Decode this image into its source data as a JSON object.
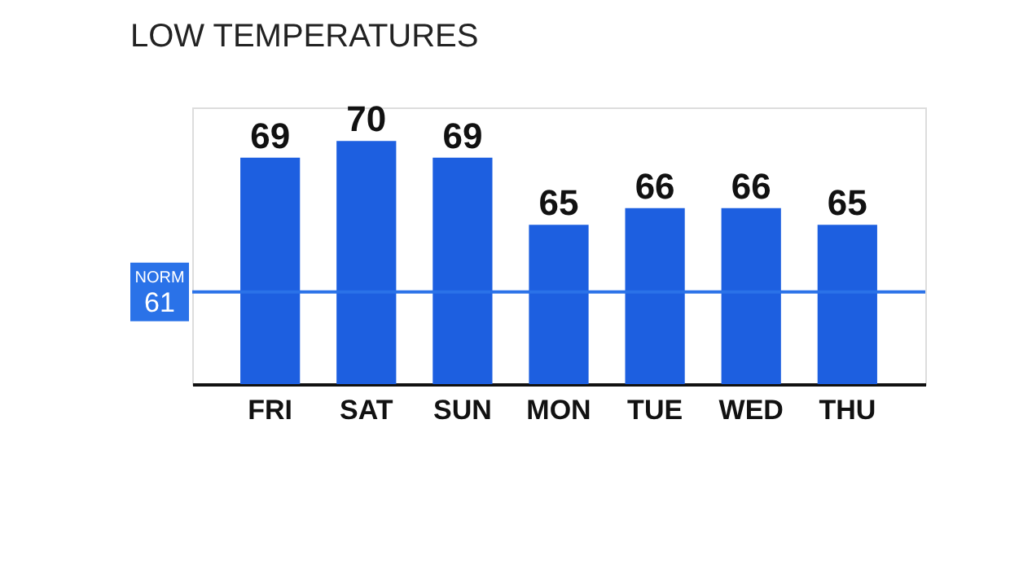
{
  "chart_data": {
    "type": "bar",
    "title": "LOW TEMPERATURES",
    "categories": [
      "FRI",
      "SAT",
      "SUN",
      "MON",
      "TUE",
      "WED",
      "THU"
    ],
    "values": [
      69,
      70,
      69,
      65,
      66,
      66,
      65
    ],
    "color": "#1d5fe0",
    "ylim": [
      55.5,
      72
    ],
    "tick_labels": "x",
    "data_labels": true,
    "grid": false,
    "ref_lines": [
      {
        "axis": "y",
        "value": 61,
        "label": "NORM\n61",
        "color": "#2a72e8"
      }
    ]
  }
}
